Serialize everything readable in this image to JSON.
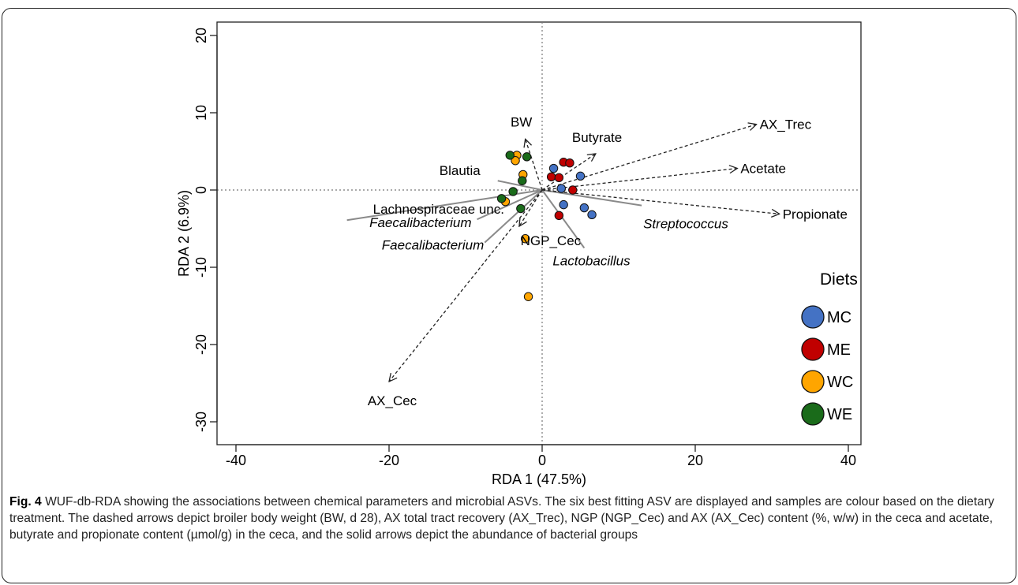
{
  "chart_data": {
    "type": "scatter",
    "xlabel": "RDA 1 (47.5%)",
    "ylabel": "RDA 2 (6.9%)",
    "xlim": [
      -44,
      41
    ],
    "ylim": [
      -32,
      22
    ],
    "xticks": [
      -40,
      -20,
      0,
      20,
      40
    ],
    "yticks": [
      -30,
      -20,
      -10,
      0,
      10,
      20
    ],
    "reference_lines": {
      "x": 0,
      "y": 0,
      "style": "dotted"
    },
    "legend": {
      "title": "Diets",
      "placement": "right",
      "items": [
        {
          "name": "MC",
          "color": "#4472C4"
        },
        {
          "name": "ME",
          "color": "#C00000"
        },
        {
          "name": "WC",
          "color": "#FFA500"
        },
        {
          "name": "WE",
          "color": "#1A6B1A"
        }
      ]
    },
    "series": [
      {
        "name": "MC",
        "color": "#4472C4",
        "points": [
          [
            1.5,
            2.8
          ],
          [
            5,
            1.8
          ],
          [
            2.5,
            0.2
          ],
          [
            2.8,
            -1.9
          ],
          [
            5.5,
            -2.3
          ],
          [
            6.5,
            -3.2
          ]
        ]
      },
      {
        "name": "ME",
        "color": "#C00000",
        "points": [
          [
            2.8,
            3.6
          ],
          [
            3.6,
            3.5
          ],
          [
            1.2,
            1.7
          ],
          [
            2.2,
            1.6
          ],
          [
            4,
            0
          ],
          [
            2.2,
            -3.3
          ]
        ]
      },
      {
        "name": "WC",
        "color": "#FFA500",
        "points": [
          [
            -3.3,
            4.5
          ],
          [
            -3.5,
            3.8
          ],
          [
            -2.5,
            2
          ],
          [
            -4.8,
            -1.5
          ],
          [
            -2.2,
            -6.3
          ],
          [
            -1.8,
            -13.8
          ]
        ]
      },
      {
        "name": "WE",
        "color": "#1A6B1A",
        "points": [
          [
            -4.2,
            4.5
          ],
          [
            -2,
            4.3
          ],
          [
            -2.6,
            1.2
          ],
          [
            -3.8,
            -0.2
          ],
          [
            -5.3,
            -1.1
          ],
          [
            -2.8,
            -2.4
          ]
        ]
      }
    ],
    "vectors": [
      {
        "label": "AX_Trec",
        "style": "dashed",
        "x": 28,
        "y": 8.5
      },
      {
        "label": "Acetate",
        "style": "dashed",
        "x": 25.5,
        "y": 2.8
      },
      {
        "label": "Propionate",
        "style": "dashed",
        "x": 31,
        "y": -3.1
      },
      {
        "label": "Butyrate",
        "style": "dashed",
        "x": 7,
        "y": 4.7
      },
      {
        "label": "BW",
        "style": "dashed",
        "x": -2.2,
        "y": 6.6
      },
      {
        "label": "NGP_Cec",
        "style": "dashed",
        "x": -3,
        "y": -4.7
      },
      {
        "label": "AX_Cec",
        "style": "dashed",
        "x": -20,
        "y": -24.8
      },
      {
        "label": "Blautia",
        "style": "solid",
        "x": -5.8,
        "y": 1.2
      },
      {
        "label": "Lachnospiraceae unc.",
        "style": "solid",
        "x": -25.5,
        "y": -3.9
      },
      {
        "label": "Faecalibacterium",
        "style": "solid",
        "italic": true,
        "x": -8.5,
        "y": -3.8
      },
      {
        "label": "Faecalibacterium",
        "style": "solid",
        "italic": true,
        "x": -7.5,
        "y": -6.8
      },
      {
        "label": "Streptococcus",
        "style": "solid",
        "italic": true,
        "x": 13,
        "y": -2
      },
      {
        "label": "Lactobacillus",
        "style": "solid",
        "italic": true,
        "x": 5.5,
        "y": -7.5
      }
    ]
  },
  "caption": {
    "fig_label": "Fig. 4",
    "text": "WUF-db-RDA showing the associations between chemical parameters and microbial ASVs. The six best fitting ASV are displayed and samples are colour based on the dietary treatment. The dashed arrows depict broiler body weight (BW, d 28), AX total tract recovery (AX_Trec), NGP (NGP_Cec) and AX (AX_Cec) content (%, w/w) in the ceca and acetate, butyrate and propionate content (µmol/g) in the ceca, and the solid arrows depict the abundance of bacterial groups"
  }
}
